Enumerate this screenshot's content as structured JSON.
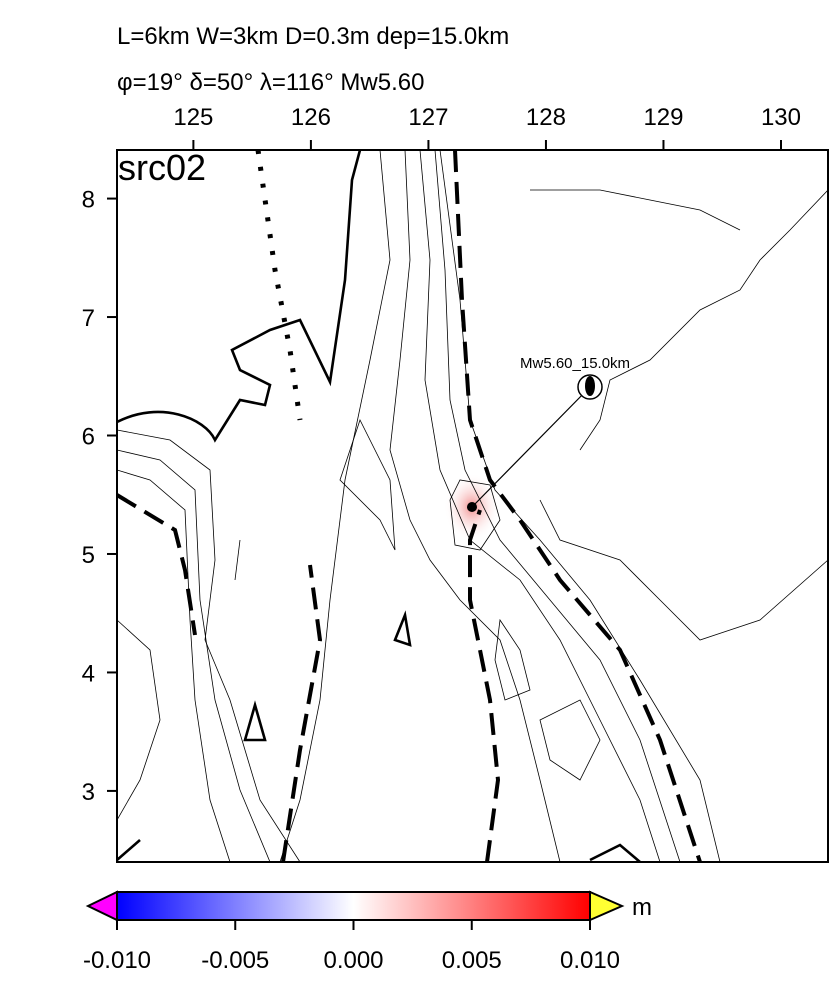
{
  "title": {
    "line1": "L=6km W=3km D=0.3m dep=15.0km",
    "line2": "φ=19° δ=50° λ=116° Mw5.60"
  },
  "map": {
    "label": "src02",
    "annotation": "Mw5.60_15.0km",
    "xlim": [
      124.35,
      130.4
    ],
    "ylim": [
      2.4,
      8.41
    ],
    "xticks": [
      125,
      126,
      127,
      128,
      129,
      130
    ],
    "yticks": [
      3,
      4,
      5,
      6,
      7,
      8
    ]
  },
  "colorbar": {
    "lim": [
      -0.01,
      0.01
    ],
    "unit": "m",
    "ticks": [
      {
        "value": -0.01,
        "label": "-0.010"
      },
      {
        "value": -0.005,
        "label": "-0.005"
      },
      {
        "value": 0,
        "label": "0.000"
      },
      {
        "value": 0.005,
        "label": "0.005"
      },
      {
        "value": 0.01,
        "label": "0.010"
      }
    ]
  }
}
